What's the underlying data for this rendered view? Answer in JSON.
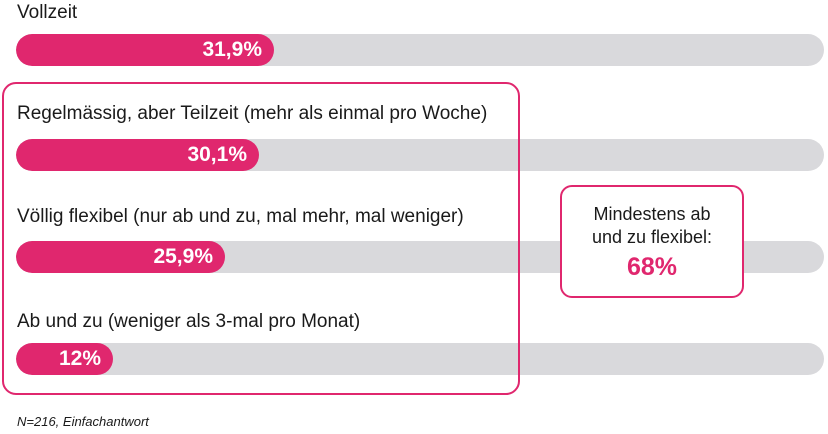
{
  "chart_data": {
    "type": "bar",
    "orientation": "horizontal",
    "categories": [
      "Vollzeit",
      "Regelmässig, aber Teilzeit (mehr als einmal pro Woche)",
      "Völlig flexibel (nur ab und zu, mal mehr, mal weniger)",
      "Ab und zu (weniger als 3-mal pro Monat)"
    ],
    "values": [
      31.9,
      30.1,
      25.9,
      12
    ],
    "value_labels": [
      "31,9%",
      "30,1%",
      "25,9%",
      "12%"
    ],
    "xlim": [
      0,
      100
    ],
    "grid": false,
    "colors": {
      "bar": "#e0276e",
      "track": "#d9d9dc",
      "accent": "#e0276e"
    },
    "annotation": {
      "text": "Mindestens ab und zu flexibel:",
      "value": "68%"
    },
    "footnote": "N=216, Einfachantwort"
  }
}
